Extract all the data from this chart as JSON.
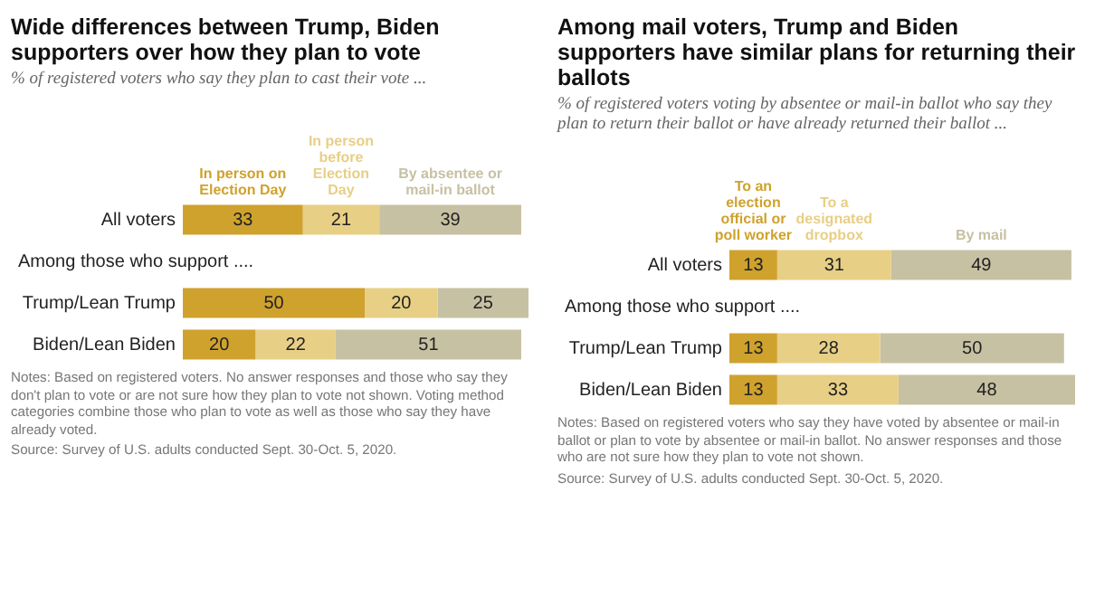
{
  "chart_data": [
    {
      "type": "bar",
      "orientation": "horizontal",
      "stacked": true,
      "data_labels": true,
      "legend": "top",
      "title": "Wide differences between Trump, Biden supporters over how they plan to vote",
      "subtitle": "% of registered voters who say they plan to cast their vote ...",
      "categories": [
        "All voters",
        "Among those who support ....",
        "Trump/Lean Trump",
        "Biden/Lean Biden"
      ],
      "series": [
        {
          "name": "In person on Election Day",
          "color": "#cfa22e",
          "values": [
            33,
            null,
            50,
            20
          ]
        },
        {
          "name": "In person before Election Day",
          "color": "#e8cf86",
          "values": [
            21,
            null,
            20,
            22
          ]
        },
        {
          "name": "By absentee or mail-in ballot",
          "color": "#c7c1a3",
          "values": [
            39,
            null,
            25,
            51
          ]
        }
      ],
      "annotations": [
        "Notes: Based on registered voters. No answer responses and those who say they don't plan to vote or are not sure how they plan to vote not shown. Voting method categories combine those who plan to vote as well as those who say they have already voted.",
        "Source: Survey of U.S. adults conducted Sept. 30-Oct. 5, 2020."
      ]
    },
    {
      "type": "bar",
      "orientation": "horizontal",
      "stacked": true,
      "data_labels": true,
      "legend": "top",
      "title": "Among mail voters, Trump and Biden supporters have similar plans for returning their ballots",
      "subtitle": "% of registered voters voting by absentee or mail-in ballot who say they plan to return their ballot or have already returned their ballot ...",
      "categories": [
        "All voters",
        "Among those who support ....",
        "Trump/Lean Trump",
        "Biden/Lean Biden"
      ],
      "series": [
        {
          "name": "To an election official or poll worker",
          "color": "#cfa22e",
          "values": [
            13,
            null,
            13,
            13
          ]
        },
        {
          "name": "To a designated dropbox",
          "color": "#e8cf86",
          "values": [
            31,
            null,
            28,
            33
          ]
        },
        {
          "name": "By mail",
          "color": "#c7c1a3",
          "values": [
            49,
            null,
            50,
            48
          ]
        }
      ],
      "annotations": [
        "Notes: Based on registered voters who say they have voted by absentee or mail-in ballot or plan to vote by absentee or mail-in ballot. No answer responses and those who are not sure how they plan to vote not shown.",
        "Source: Survey of U.S. adults conducted Sept. 30-Oct. 5, 2020."
      ]
    }
  ]
}
